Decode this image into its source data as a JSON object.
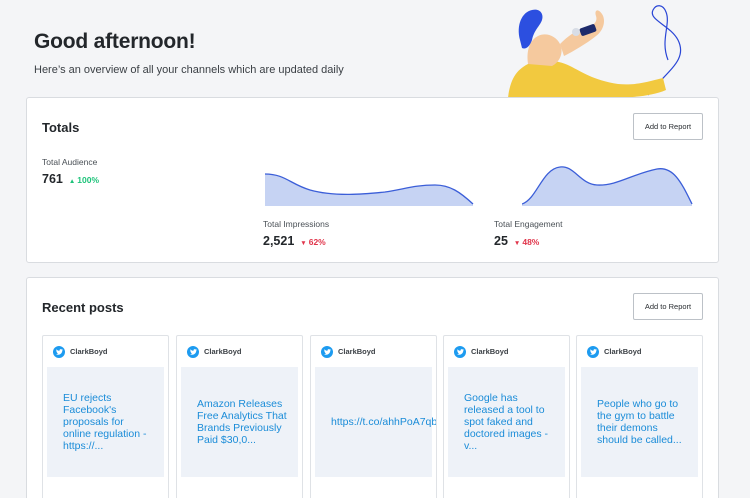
{
  "greeting": {
    "title": "Good afternoon!",
    "subtitle": "Here’s an overview of all your channels which are updated daily"
  },
  "totals": {
    "title": "Totals",
    "add_to_report": "Add to Report",
    "audience": {
      "label": "Total Audience",
      "value": "761",
      "delta": "100%",
      "direction": "up"
    },
    "impressions": {
      "label": "Total Impressions",
      "value": "2,521",
      "delta": "62%",
      "direction": "down"
    },
    "engagement": {
      "label": "Total Engagement",
      "value": "25",
      "delta": "48%",
      "direction": "down"
    }
  },
  "recent_posts": {
    "title": "Recent posts",
    "add_to_report": "Add to Report",
    "posts": [
      {
        "user": "ClarkBoyd",
        "icon": "twitter-icon",
        "text": "EU rejects\nFacebook's\nproposals for\nonline regulation -\nhttps://..."
      },
      {
        "user": "ClarkBoyd",
        "icon": "twitter-icon",
        "text": "Amazon Releases\nFree Analytics That\nBrands Previously\nPaid $30,0..."
      },
      {
        "user": "ClarkBoyd",
        "icon": "twitter-icon",
        "text": "https://t.co/ahhPoA7qb"
      },
      {
        "user": "ClarkBoyd",
        "icon": "twitter-icon",
        "text": "Google has\nreleased a tool to\nspot faked and\ndoctored images -\nv..."
      },
      {
        "user": "ClarkBoyd",
        "icon": "twitter-icon",
        "text": "People who go to\nthe gym to battle\ntheir demons\nshould be called..."
      }
    ]
  },
  "colors": {
    "accent": "#3b5ed8",
    "spark_fill": "#c6d3f3",
    "up": "#1ec37a",
    "down": "#e0344a",
    "link": "#1a8cd8",
    "twitter": "#1d9bf0"
  }
}
